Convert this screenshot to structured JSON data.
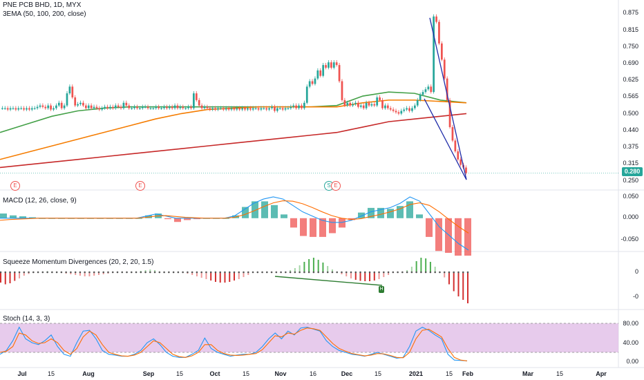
{
  "title": "PNE PCB BHD, 1D, MYX",
  "ema_legend": "3EMA (50, 100, 200, close)",
  "last_price": "0.280",
  "colors": {
    "up": "#26a69a",
    "down": "#ef5350",
    "ema50": "#43a047",
    "ema100": "#f57c00",
    "ema200": "#c62828",
    "wedge": "#1e2ba8",
    "macd": "#2196f3",
    "signal": "#ff6d00",
    "stoch_bg": "#e1bee7",
    "stoch_k": "#2196f3",
    "stoch_d": "#ff6d00"
  },
  "price_axis": [
    "0.875",
    "0.815",
    "0.750",
    "0.690",
    "0.625",
    "0.565",
    "0.500",
    "0.440",
    "0.375",
    "0.315",
    "0.250"
  ],
  "macd_title": "MACD (12, 26, close, 9)",
  "macd_axis": [
    "0.050",
    "0.000",
    "-0.050"
  ],
  "sqz_title": "Squeeze Momentum Divergences (20, 2, 20, 1.5)",
  "sqz_axis": [
    "0",
    "-0"
  ],
  "sqz_badge": "H",
  "stoch_title": "Stoch (14, 3, 3)",
  "stoch_axis": [
    "80.00",
    "40.00",
    "0.00"
  ],
  "x_axis": [
    "Jul",
    "15",
    "Aug",
    "Sep",
    "15",
    "Oct",
    "15",
    "Nov",
    "16",
    "Dec",
    "15",
    "2021",
    "15",
    "Feb",
    "Mar",
    "15",
    "Apr"
  ],
  "events": [
    {
      "label": "E",
      "kind": "earnings"
    },
    {
      "label": "E",
      "kind": "earnings"
    },
    {
      "label": "S",
      "kind": "split"
    },
    {
      "label": "E",
      "kind": "earnings"
    }
  ],
  "chart_data": {
    "type": "candlestick",
    "x_range": [
      "Jun",
      "Apr"
    ],
    "y_range": [
      0.25,
      0.875
    ],
    "candles_close": [
      0.52,
      0.52,
      0.515,
      0.52,
      0.52,
      0.515,
      0.52,
      0.52,
      0.515,
      0.52,
      0.515,
      0.52,
      0.52,
      0.525,
      0.53,
      0.525,
      0.52,
      0.53,
      0.515,
      0.52,
      0.53,
      0.54,
      0.52,
      0.53,
      0.575,
      0.6,
      0.56,
      0.53,
      0.535,
      0.54,
      0.53,
      0.52,
      0.53,
      0.52,
      0.525,
      0.52,
      0.515,
      0.52,
      0.525,
      0.52,
      0.525,
      0.52,
      0.53,
      0.525,
      0.52,
      0.54,
      0.53,
      0.52,
      0.52,
      0.525,
      0.52,
      0.52,
      0.525,
      0.525,
      0.52,
      0.52,
      0.52,
      0.525,
      0.52,
      0.52,
      0.525,
      0.52,
      0.525,
      0.52,
      0.53,
      0.52,
      0.525,
      0.52,
      0.52,
      0.525,
      0.52,
      0.575,
      0.55,
      0.53,
      0.52,
      0.525,
      0.52,
      0.515,
      0.52,
      0.515,
      0.52,
      0.52,
      0.515,
      0.52,
      0.515,
      0.52,
      0.515,
      0.52,
      0.515,
      0.52,
      0.515,
      0.52,
      0.515,
      0.52,
      0.52,
      0.515,
      0.52,
      0.52,
      0.515,
      0.52,
      0.525,
      0.51,
      0.52,
      0.52,
      0.515,
      0.52,
      0.52,
      0.525,
      0.53,
      0.52,
      0.53,
      0.52,
      0.54,
      0.6,
      0.62,
      0.61,
      0.63,
      0.66,
      0.64,
      0.68,
      0.67,
      0.69,
      0.67,
      0.69,
      0.68,
      0.62,
      0.55,
      0.53,
      0.54,
      0.53,
      0.535,
      0.54,
      0.525,
      0.53,
      0.52,
      0.54,
      0.53,
      0.535,
      0.53,
      0.56,
      0.55,
      0.52,
      0.53,
      0.52,
      0.515,
      0.51,
      0.505,
      0.5,
      0.51,
      0.515,
      0.52,
      0.51,
      0.52,
      0.53,
      0.55,
      0.57,
      0.58,
      0.59,
      0.6,
      0.58,
      0.86,
      0.84,
      0.76,
      0.7,
      0.63,
      0.55,
      0.45,
      0.4,
      0.36,
      0.33,
      0.31,
      0.3,
      0.28
    ],
    "ema": [
      {
        "name": "EMA 50",
        "values": [
          0.43,
          0.46,
          0.49,
          0.51,
          0.52,
          0.525,
          0.525,
          0.525,
          0.525,
          0.525,
          0.525,
          0.525,
          0.525,
          0.53,
          0.565,
          0.58,
          0.575,
          0.55,
          0.54
        ]
      },
      {
        "name": "EMA 100",
        "values": [
          0.33,
          0.355,
          0.38,
          0.405,
          0.43,
          0.455,
          0.48,
          0.5,
          0.515,
          0.52,
          0.525,
          0.525,
          0.525,
          0.525,
          0.54,
          0.55,
          0.55,
          0.545,
          0.54
        ]
      },
      {
        "name": "EMA 200",
        "values": [
          0.3,
          0.31,
          0.32,
          0.33,
          0.34,
          0.35,
          0.36,
          0.37,
          0.38,
          0.39,
          0.4,
          0.41,
          0.42,
          0.43,
          0.45,
          0.47,
          0.48,
          0.49,
          0.5
        ]
      }
    ],
    "macd": {
      "y_range": [
        -0.075,
        0.05
      ],
      "macd": [
        0,
        0,
        0,
        0,
        0,
        0,
        0,
        0,
        0,
        0,
        0,
        0,
        0,
        0,
        0,
        0.005,
        0.01,
        0.005,
        0,
        0,
        0,
        0,
        0,
        0,
        0.005,
        0.02,
        0.035,
        0.045,
        0.05,
        0.045,
        0.03,
        0.015,
        0.005,
        -0.005,
        -0.01,
        -0.01,
        -0.005,
        0.005,
        0.015,
        0.02,
        0.025,
        0.035,
        0.05,
        0.04,
        0.01,
        -0.02,
        -0.04,
        -0.06,
        -0.075
      ],
      "signal": [
        -0.005,
        -0.003,
        -0.002,
        -0.001,
        0,
        0,
        0,
        0,
        0,
        0,
        0,
        0,
        0,
        0,
        0,
        0.002,
        0.005,
        0.006,
        0.004,
        0.002,
        0.001,
        0,
        0,
        0,
        0.002,
        0.008,
        0.017,
        0.027,
        0.036,
        0.041,
        0.04,
        0.034,
        0.025,
        0.015,
        0.006,
        0,
        -0.003,
        -0.001,
        0.004,
        0.009,
        0.015,
        0.022,
        0.032,
        0.036,
        0.03,
        0.015,
        -0.003,
        -0.02,
        -0.035
      ]
    },
    "squeeze": {
      "histogram": [
        -30,
        -35,
        -32,
        -25,
        -18,
        -10,
        -5,
        -2,
        0,
        2,
        3,
        2,
        0,
        -2,
        -4,
        -6,
        -8,
        -10,
        -12,
        -12,
        -10,
        -8,
        -6,
        -4,
        -2,
        0,
        0,
        0,
        0,
        2,
        4,
        6,
        8,
        6,
        2,
        0,
        0,
        0,
        0,
        -2,
        -4,
        -8,
        -12,
        -16,
        -20,
        -24,
        -28,
        -30,
        -30,
        -28,
        -24,
        -20,
        -14,
        -8,
        -2,
        0,
        0,
        0,
        0,
        0,
        0,
        2,
        6,
        12,
        20,
        30,
        38,
        42,
        36,
        28,
        18,
        8,
        0,
        -6,
        -12,
        -18,
        -22,
        -25,
        -26,
        -26,
        -24,
        -20,
        -14,
        -8,
        -2,
        0,
        0,
        6,
        16,
        32,
        42,
        40,
        30,
        16,
        0,
        -15,
        -35,
        -55,
        -70,
        -80,
        -90
      ]
    },
    "stoch": {
      "y_range": [
        0,
        100
      ],
      "k": [
        20,
        30,
        55,
        90,
        60,
        50,
        45,
        55,
        70,
        40,
        20,
        15,
        50,
        80,
        82,
        60,
        30,
        20,
        18,
        15,
        15,
        20,
        30,
        50,
        60,
        45,
        25,
        15,
        12,
        12,
        20,
        30,
        62,
        35,
        25,
        20,
        15,
        18,
        20,
        20,
        25,
        40,
        60,
        75,
        60,
        80,
        70,
        88,
        90,
        85,
        80,
        55,
        40,
        30,
        25,
        20,
        18,
        15,
        20,
        25,
        20,
        15,
        10,
        12,
        40,
        80,
        90,
        82,
        70,
        60,
        20,
        5,
        4,
        3
      ],
      "d": [
        25,
        28,
        40,
        75,
        70,
        55,
        48,
        50,
        60,
        50,
        30,
        20,
        35,
        65,
        80,
        70,
        45,
        25,
        20,
        16,
        15,
        18,
        25,
        40,
        55,
        50,
        35,
        20,
        14,
        12,
        16,
        25,
        45,
        45,
        30,
        22,
        18,
        17,
        18,
        20,
        22,
        32,
        50,
        68,
        65,
        75,
        72,
        82,
        88,
        86,
        82,
        65,
        48,
        35,
        28,
        22,
        19,
        16,
        18,
        22,
        21,
        17,
        12,
        11,
        25,
        60,
        82,
        85,
        75,
        65,
        35,
        12,
        5,
        3
      ]
    }
  }
}
